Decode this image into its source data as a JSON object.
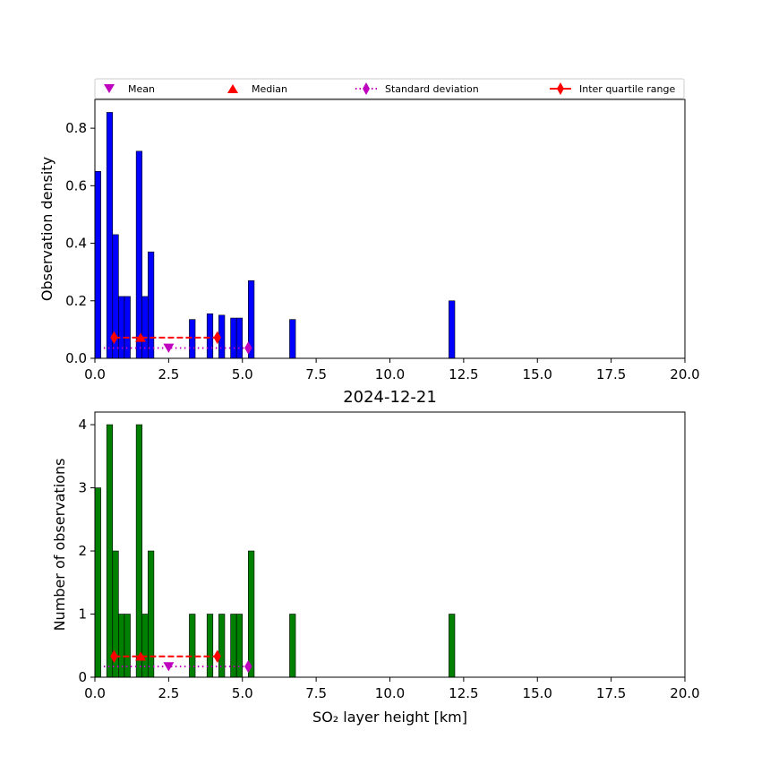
{
  "colors": {
    "density_bars": "#0000ff",
    "count_bars": "#008000",
    "mean": "#bf00bf",
    "median": "#ff0000",
    "std": "#bf00bf",
    "iqr": "#ff0000"
  },
  "legend": {
    "mean": "Mean",
    "median": "Median",
    "std": "Standard deviation",
    "iqr": "Inter quartile range"
  },
  "chart_data": [
    {
      "type": "bar",
      "title": "",
      "xlabel": "",
      "ylabel": "Observation density",
      "xlim": [
        0,
        20
      ],
      "ylim": [
        0,
        0.9
      ],
      "bin_width": 0.2,
      "xticks": [
        "0.0",
        "2.5",
        "5.0",
        "7.5",
        "10.0",
        "12.5",
        "15.0",
        "17.5",
        "20.0"
      ],
      "yticks": [
        "0.0",
        "0.2",
        "0.4",
        "0.6",
        "0.8"
      ],
      "ytick_values": [
        0,
        0.2,
        0.4,
        0.6,
        0.8
      ],
      "bars": [
        {
          "x": 0.1,
          "value": 0.65
        },
        {
          "x": 0.5,
          "value": 0.855
        },
        {
          "x": 0.7,
          "value": 0.43
        },
        {
          "x": 0.9,
          "value": 0.215
        },
        {
          "x": 1.1,
          "value": 0.215
        },
        {
          "x": 1.5,
          "value": 0.72
        },
        {
          "x": 1.7,
          "value": 0.215
        },
        {
          "x": 1.9,
          "value": 0.37
        },
        {
          "x": 3.3,
          "value": 0.135
        },
        {
          "x": 3.9,
          "value": 0.155
        },
        {
          "x": 4.3,
          "value": 0.15
        },
        {
          "x": 4.7,
          "value": 0.14
        },
        {
          "x": 4.9,
          "value": 0.14
        },
        {
          "x": 5.3,
          "value": 0.27
        },
        {
          "x": 6.7,
          "value": 0.135
        },
        {
          "x": 12.1,
          "value": 0.2
        }
      ],
      "stats": {
        "mean": 2.5,
        "median": 1.55,
        "std_range": [
          0.3,
          5.2
        ],
        "iqr_range": [
          0.65,
          4.15
        ],
        "iqr_y": 0.072,
        "std_y": 0.036
      }
    },
    {
      "type": "bar",
      "title": "2024-12-21",
      "xlabel": "SO₂ layer height [km]",
      "ylabel": "Number of observations",
      "xlim": [
        0,
        20
      ],
      "ylim": [
        0,
        4.2
      ],
      "bin_width": 0.2,
      "xticks": [
        "0.0",
        "2.5",
        "5.0",
        "7.5",
        "10.0",
        "12.5",
        "15.0",
        "17.5",
        "20.0"
      ],
      "yticks": [
        "0",
        "1",
        "2",
        "3",
        "4"
      ],
      "ytick_values": [
        0,
        1,
        2,
        3,
        4
      ],
      "bars": [
        {
          "x": 0.1,
          "value": 3
        },
        {
          "x": 0.5,
          "value": 4
        },
        {
          "x": 0.7,
          "value": 2
        },
        {
          "x": 0.9,
          "value": 1
        },
        {
          "x": 1.1,
          "value": 1
        },
        {
          "x": 1.5,
          "value": 4
        },
        {
          "x": 1.7,
          "value": 1
        },
        {
          "x": 1.9,
          "value": 2
        },
        {
          "x": 3.3,
          "value": 1
        },
        {
          "x": 3.9,
          "value": 1
        },
        {
          "x": 4.3,
          "value": 1
        },
        {
          "x": 4.7,
          "value": 1
        },
        {
          "x": 4.9,
          "value": 1
        },
        {
          "x": 5.3,
          "value": 2
        },
        {
          "x": 6.7,
          "value": 1
        },
        {
          "x": 12.1,
          "value": 1
        }
      ],
      "stats": {
        "mean": 2.5,
        "median": 1.55,
        "std_range": [
          0.3,
          5.2
        ],
        "iqr_range": [
          0.65,
          4.15
        ],
        "iqr_y": 0.33,
        "std_y": 0.17
      }
    }
  ]
}
